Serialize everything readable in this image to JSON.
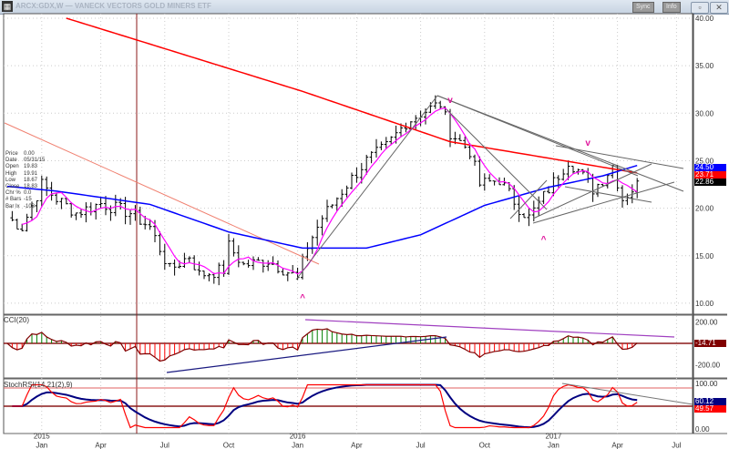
{
  "window": {
    "title": "ARCX:GDX,W — VANECK VECTORS GOLD MINERS ETF",
    "sync_label": "Sync",
    "info_label": "Info",
    "minimize": "–",
    "restore": "▫",
    "close": "✕"
  },
  "info_panel": [
    {
      "k": "Price",
      "v": "0.00"
    },
    {
      "k": "Date",
      "v": "05/31/15"
    },
    {
      "k": "Open",
      "v": "19.83"
    },
    {
      "k": "High",
      "v": "19.91"
    },
    {
      "k": "Low",
      "v": "18.67"
    },
    {
      "k": "Close",
      "v": "18.83"
    },
    {
      "k": "Chr %",
      "v": "0.0"
    },
    {
      "k": "# Bars",
      "v": "-15"
    },
    {
      "k": "Bar Ix",
      "v": "-103"
    }
  ],
  "badges": {
    "ma_blue": "24.50",
    "ma_red": "23.71",
    "last_close": "22.86",
    "cci": "-14.71",
    "stoch_k": "60.12",
    "stoch_d": "49.57"
  },
  "colors": {
    "ma_long": "#ff0000",
    "ma_mid": "#0000ff",
    "ma_short": "#ff00ff",
    "cci_line": "#800000",
    "stoch_fast": "#ff0000",
    "stoch_slow": "#000080"
  },
  "chart_data": {
    "type": "ohlc",
    "title": "ARCX:GDX,W — VANECK VECTORS GOLD MINERS ETF",
    "price_axis": {
      "ticks": [
        "40.00",
        "35.00",
        "30.00",
        "25.00",
        "20.00",
        "15.00",
        "10.00"
      ],
      "range": [
        10,
        40
      ]
    },
    "x_ticks": [
      {
        "label": "2015",
        "sub": "Jan",
        "week": 7
      },
      {
        "label": "",
        "sub": "Apr",
        "week": 19
      },
      {
        "label": "",
        "sub": "Jul",
        "week": 32
      },
      {
        "label": "",
        "sub": "Oct",
        "week": 45
      },
      {
        "label": "2016",
        "sub": "Jan",
        "week": 59
      },
      {
        "label": "",
        "sub": "Apr",
        "week": 71
      },
      {
        "label": "",
        "sub": "Jul",
        "week": 84
      },
      {
        "label": "",
        "sub": "Oct",
        "week": 97
      },
      {
        "label": "2017",
        "sub": "Jan",
        "week": 111
      },
      {
        "label": "",
        "sub": "Apr",
        "week": 124
      },
      {
        "label": "",
        "sub": "Jul",
        "week": 136
      }
    ],
    "close_keypoints": [
      [
        0,
        19
      ],
      [
        3,
        18
      ],
      [
        7,
        22.5
      ],
      [
        10,
        21
      ],
      [
        14,
        19.5
      ],
      [
        19,
        20.5
      ],
      [
        25,
        19.5
      ],
      [
        29,
        18
      ],
      [
        33,
        13.5
      ],
      [
        37,
        15
      ],
      [
        39,
        13
      ],
      [
        44,
        13.5
      ],
      [
        45,
        16
      ],
      [
        48,
        14
      ],
      [
        53,
        14.5
      ],
      [
        58,
        13
      ],
      [
        59,
        12.5
      ],
      [
        61,
        16
      ],
      [
        64,
        19
      ],
      [
        69,
        22.5
      ],
      [
        73,
        25
      ],
      [
        77,
        26.5
      ],
      [
        81,
        29
      ],
      [
        84,
        30
      ],
      [
        88,
        31
      ],
      [
        90,
        28
      ],
      [
        94,
        26
      ],
      [
        96,
        22.5
      ],
      [
        100,
        23
      ],
      [
        104,
        20
      ],
      [
        106,
        19
      ],
      [
        110,
        22
      ],
      [
        114,
        25
      ],
      [
        116,
        24
      ],
      [
        119,
        22
      ],
      [
        121,
        23
      ],
      [
        123,
        24.5
      ],
      [
        125,
        21
      ],
      [
        127,
        22
      ],
      [
        128,
        22.86
      ]
    ],
    "ma_long_keypoints": [
      [
        12,
        40
      ],
      [
        27,
        37.6
      ],
      [
        60,
        32.3
      ],
      [
        90,
        27
      ],
      [
        128,
        23.71
      ]
    ],
    "ma_mid_keypoints": [
      [
        0,
        22.3
      ],
      [
        10,
        21.8
      ],
      [
        29,
        20.4
      ],
      [
        45,
        17.5
      ],
      [
        60,
        15.8
      ],
      [
        73,
        15.8
      ],
      [
        84,
        17.2
      ],
      [
        97,
        20.3
      ],
      [
        110,
        22.2
      ],
      [
        121,
        23.4
      ],
      [
        128,
        24.5
      ]
    ],
    "cci": {
      "label": "CCI(20)",
      "ticks": [
        "200.00",
        "-200.00"
      ],
      "range": [
        -250,
        250
      ]
    },
    "stoch_rsi": {
      "label": "StochRSI(14,21(2),9)",
      "ticks": [
        "100.00",
        "0.00"
      ],
      "range": [
        0,
        100
      ]
    },
    "markers": [
      {
        "week": 60,
        "symbol": "^"
      },
      {
        "week": 109,
        "symbol": "^"
      },
      {
        "week": 90,
        "symbol": "v"
      },
      {
        "week": 118,
        "symbol": "v"
      }
    ]
  }
}
